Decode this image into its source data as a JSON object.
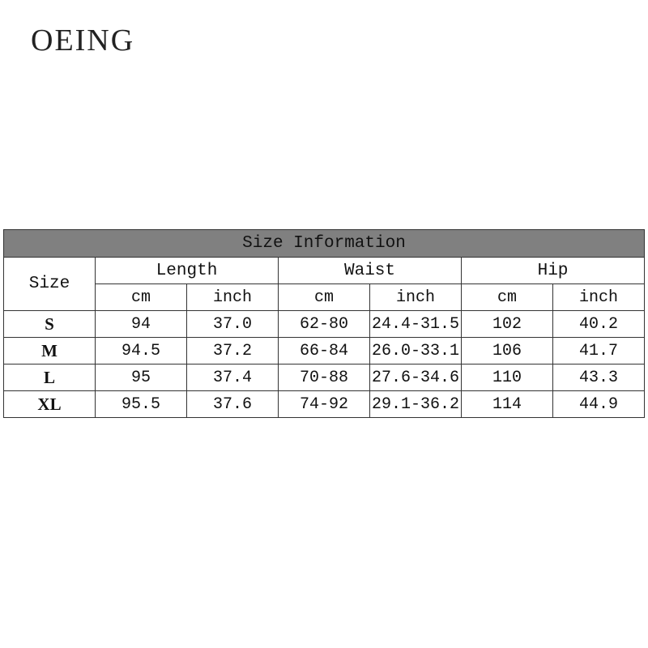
{
  "brand": "OEING",
  "table": {
    "title": "Size Information",
    "size_header": "Size",
    "groups": [
      "Length",
      "Waist",
      "Hip"
    ],
    "units": [
      "cm",
      "inch",
      "cm",
      "inch",
      "cm",
      "inch"
    ],
    "rows": [
      {
        "size": "S",
        "values": [
          "94",
          "37.0",
          "62-80",
          "24.4-31.5",
          "102",
          "40.2"
        ]
      },
      {
        "size": "M",
        "values": [
          "94.5",
          "37.2",
          "66-84",
          "26.0-33.1",
          "106",
          "41.7"
        ]
      },
      {
        "size": "L",
        "values": [
          "95",
          "37.4",
          "70-88",
          "27.6-34.6",
          "110",
          "43.3"
        ]
      },
      {
        "size": "XL",
        "values": [
          "95.5",
          "37.6",
          "74-92",
          "29.1-36.2",
          "114",
          "44.9"
        ]
      }
    ]
  }
}
